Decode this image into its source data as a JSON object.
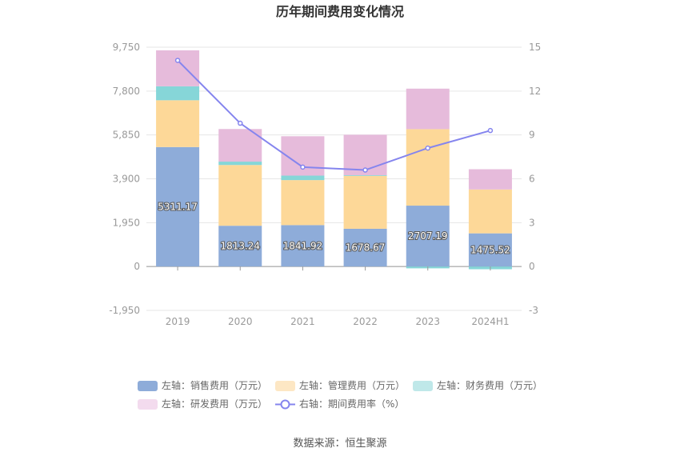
{
  "chart_data": {
    "type": "bar",
    "title": "历年期间费用变化情况",
    "categories": [
      "2019",
      "2020",
      "2021",
      "2022",
      "2023",
      "2024H1"
    ],
    "left_axis": {
      "ticks": [
        "9,750",
        "7,800",
        "5,850",
        "3,900",
        "1,950",
        "0",
        "-1,950"
      ],
      "range": [
        -1950,
        9750
      ]
    },
    "right_axis": {
      "ticks": [
        "15",
        "12",
        "9",
        "6",
        "3",
        "0",
        "-3"
      ],
      "range": [
        -3,
        15
      ]
    },
    "series": [
      {
        "name": "左轴：销售费用（万元）",
        "kind": "stacked-bar",
        "color": "#8eacd9",
        "values": [
          5311.17,
          1813.24,
          1841.92,
          1678.67,
          2707.19,
          1475.52
        ],
        "labels": [
          "5311.17",
          "1813.24",
          "1841.92",
          "1678.67",
          "2707.19",
          "1475.52"
        ]
      },
      {
        "name": "左轴：管理费用（万元）",
        "kind": "stacked-bar",
        "color": "#fdd898",
        "values": [
          2080,
          2700,
          2000,
          2350,
          3400,
          1950
        ]
      },
      {
        "name": "左轴：财务费用（万元）",
        "kind": "stacked-bar",
        "color": "#86d6d8",
        "values": [
          620,
          150,
          200,
          30,
          -80,
          -120
        ]
      },
      {
        "name": "左轴：研发费用（万元）",
        "kind": "stacked-bar",
        "color": "#e6bbdb",
        "values": [
          1600,
          1450,
          1750,
          1800,
          1800,
          900
        ]
      },
      {
        "name": "右轴：期间费用率（%）",
        "kind": "line",
        "color": "#8585ee",
        "values": [
          14.1,
          9.8,
          6.8,
          6.6,
          8.1,
          9.3
        ]
      }
    ],
    "legend_position": "bottom",
    "grid": true
  },
  "source_text": "数据来源：恒生聚源"
}
